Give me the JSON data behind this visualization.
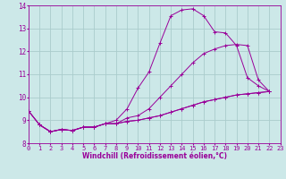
{
  "background_color": "#cce8e8",
  "line_color": "#990099",
  "grid_color": "#aacccc",
  "xlabel": "Windchill (Refroidissement éolien,°C)",
  "xlim": [
    0,
    23
  ],
  "ylim": [
    8,
    14
  ],
  "yticks": [
    8,
    9,
    10,
    11,
    12,
    13,
    14
  ],
  "xticks": [
    0,
    1,
    2,
    3,
    4,
    5,
    6,
    7,
    8,
    9,
    10,
    11,
    12,
    13,
    14,
    15,
    16,
    17,
    18,
    19,
    20,
    21,
    22,
    23
  ],
  "series": [
    {
      "x": [
        0,
        1,
        2,
        3,
        4,
        5,
        6,
        7,
        8,
        9,
        10,
        11,
        12,
        13,
        14,
        15,
        16,
        17,
        18,
        19,
        20,
        21,
        22
      ],
      "y": [
        9.4,
        8.8,
        8.5,
        8.6,
        8.55,
        8.7,
        8.7,
        8.85,
        9.0,
        9.5,
        10.4,
        11.1,
        12.35,
        13.55,
        13.8,
        13.85,
        13.55,
        12.85,
        12.8,
        12.25,
        10.85,
        10.5,
        10.25
      ]
    },
    {
      "x": [
        0,
        1,
        2,
        3,
        4,
        5,
        6,
        7,
        8,
        9,
        10,
        11,
        12,
        13,
        14,
        15,
        16,
        17,
        18,
        19,
        20,
        21,
        22
      ],
      "y": [
        9.4,
        8.8,
        8.5,
        8.6,
        8.55,
        8.7,
        8.7,
        8.85,
        8.85,
        9.1,
        9.2,
        9.5,
        10.0,
        10.5,
        11.0,
        11.5,
        11.9,
        12.1,
        12.25,
        12.3,
        12.25,
        10.75,
        10.25
      ]
    },
    {
      "x": [
        0,
        1,
        2,
        3,
        4,
        5,
        6,
        7,
        8,
        9,
        10,
        11,
        12,
        13,
        14,
        15,
        16,
        17,
        18,
        19,
        20,
        21,
        22
      ],
      "y": [
        9.4,
        8.8,
        8.5,
        8.6,
        8.55,
        8.7,
        8.7,
        8.85,
        8.85,
        8.95,
        9.0,
        9.1,
        9.2,
        9.35,
        9.5,
        9.65,
        9.8,
        9.9,
        10.0,
        10.1,
        10.15,
        10.2,
        10.25
      ]
    },
    {
      "x": [
        1,
        2,
        3,
        4,
        5,
        6,
        7,
        8,
        9,
        10,
        11,
        12,
        13,
        14,
        15,
        16,
        17,
        18,
        19,
        20,
        21,
        22
      ],
      "y": [
        8.8,
        8.5,
        8.6,
        8.55,
        8.7,
        8.7,
        8.85,
        8.85,
        8.95,
        9.0,
        9.1,
        9.2,
        9.35,
        9.5,
        9.65,
        9.8,
        9.9,
        10.0,
        10.1,
        10.15,
        10.2,
        10.25
      ]
    }
  ]
}
